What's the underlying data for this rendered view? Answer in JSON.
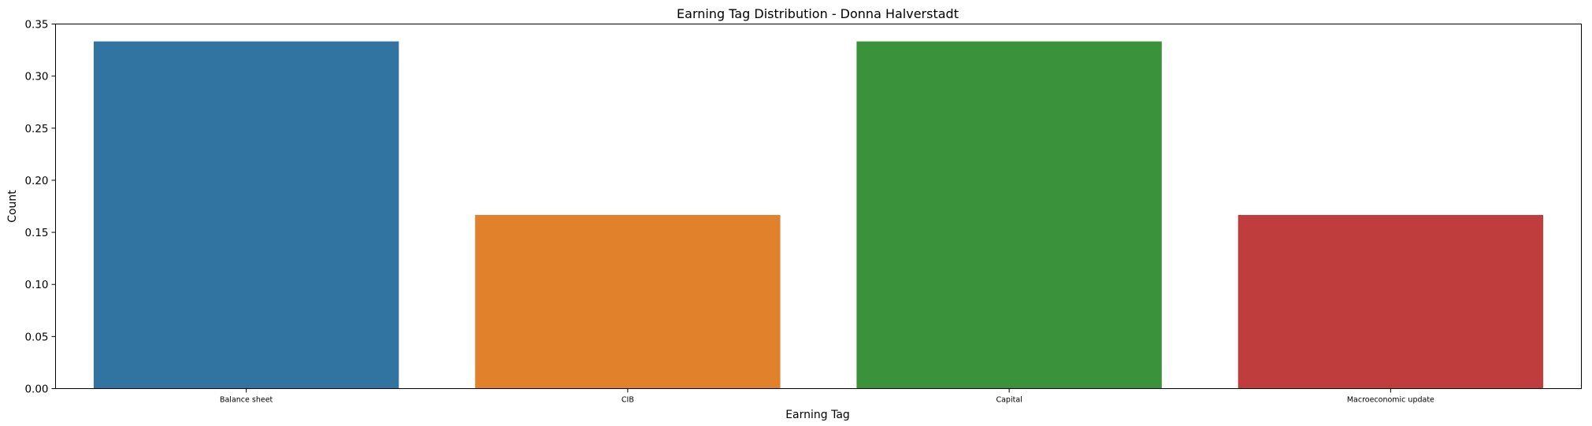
{
  "chart_data": {
    "type": "bar",
    "title": "Earning Tag Distribution - Donna Halverstadt",
    "xlabel": "Earning Tag",
    "ylabel": "Count",
    "categories": [
      "Balance sheet",
      "CIB",
      "Capital",
      "Macroeconomic update"
    ],
    "values": [
      0.3333,
      0.1667,
      0.3333,
      0.1667
    ],
    "colors": [
      "#3274a1",
      "#e1812c",
      "#3a923a",
      "#c03d3e"
    ],
    "ylim": [
      0,
      0.35
    ],
    "yticks": [
      "0.00",
      "0.05",
      "0.10",
      "0.15",
      "0.20",
      "0.25",
      "0.30",
      "0.35"
    ],
    "grid": false,
    "legend": "none"
  }
}
